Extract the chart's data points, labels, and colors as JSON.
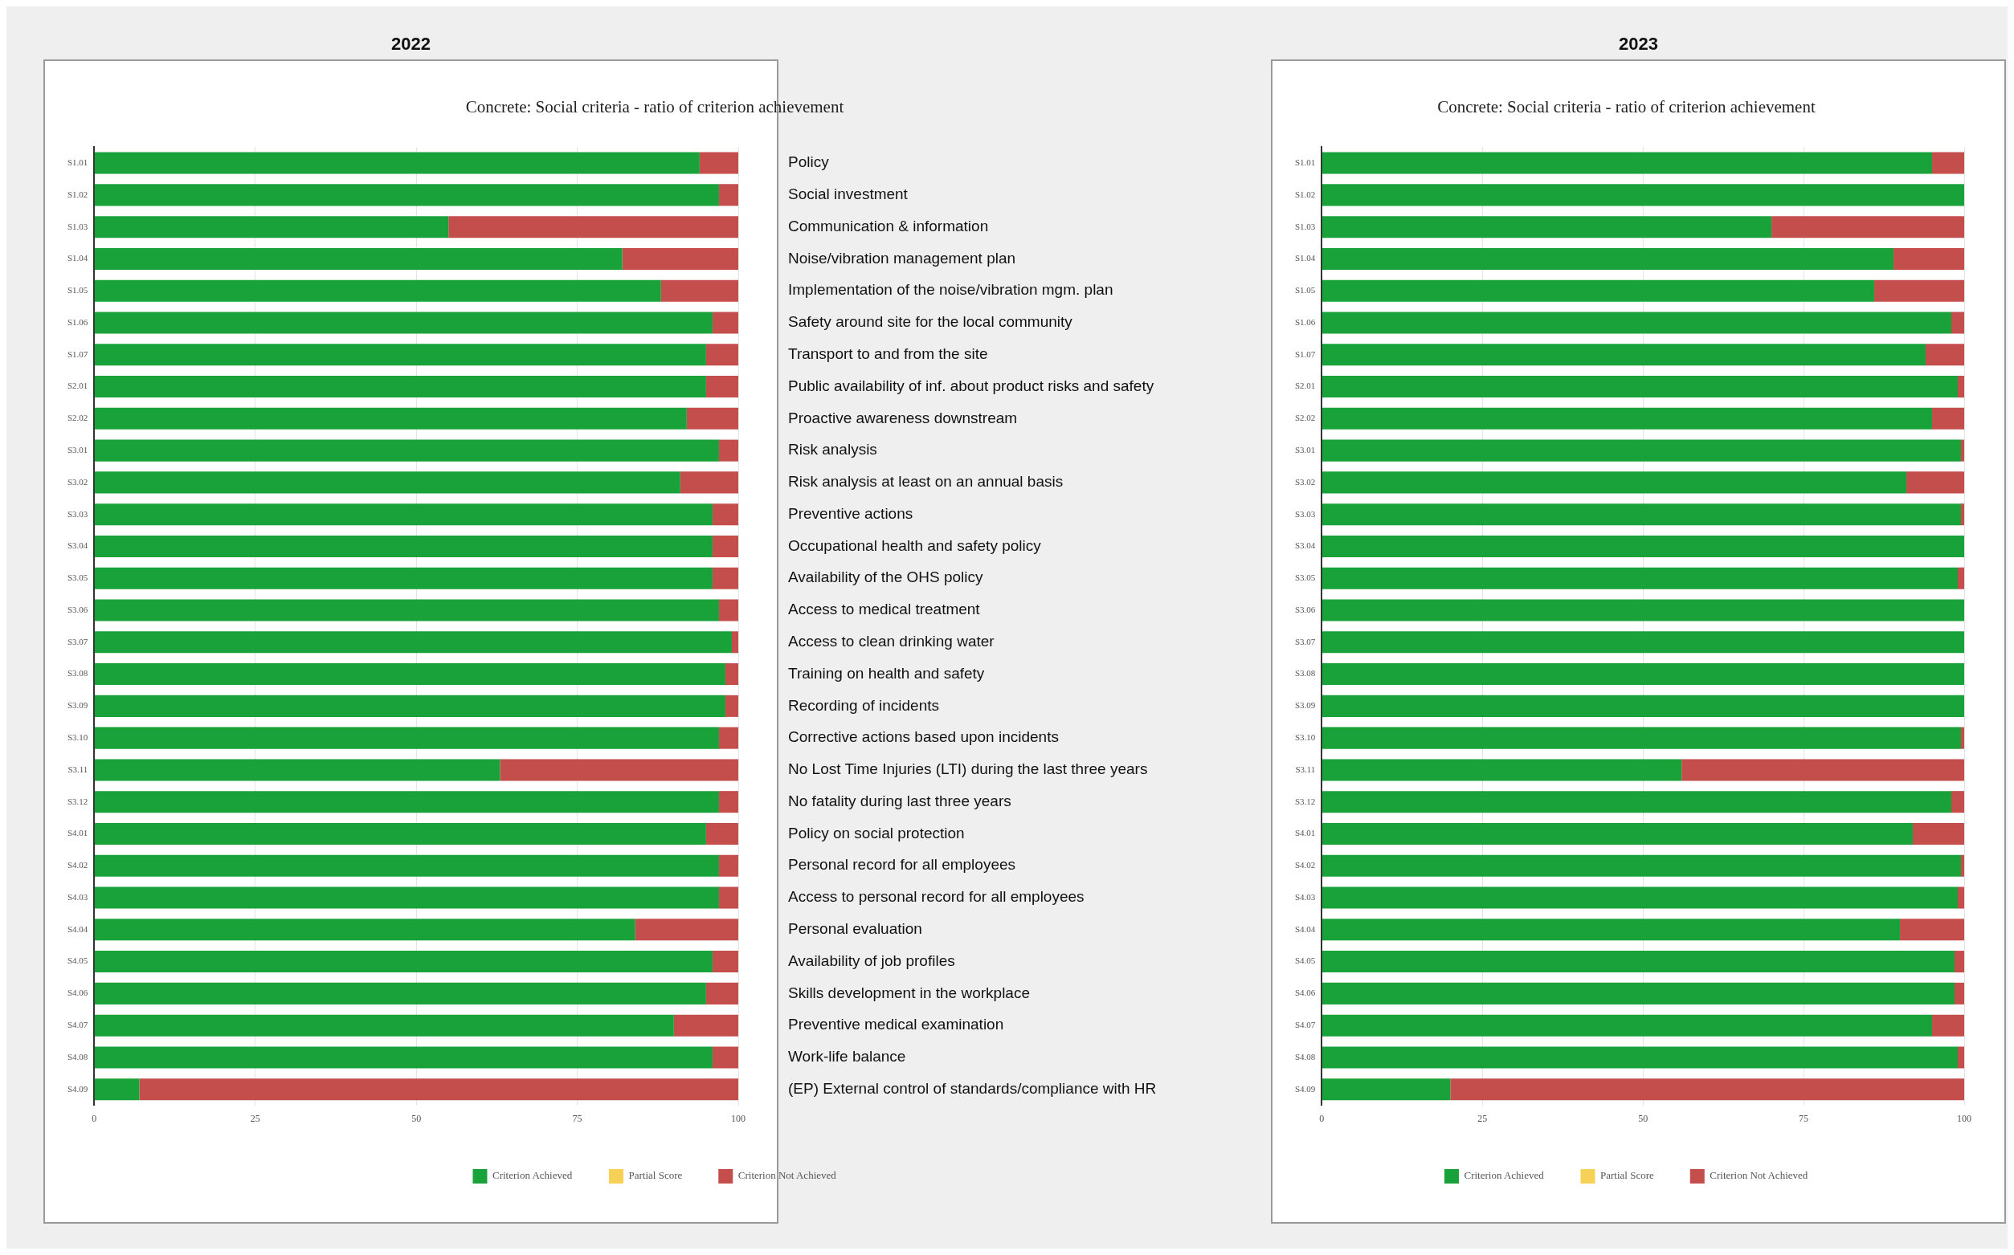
{
  "chart_data": [
    {
      "type": "bar",
      "orientation": "horizontal",
      "stacked": true,
      "title": "2022",
      "subtitle": "Concrete: Social criteria - ratio of criterion achievement",
      "categories": [
        "S1.01",
        "S1.02",
        "S1.03",
        "S1.04",
        "S1.05",
        "S1.06",
        "S1.07",
        "S2.01",
        "S2.02",
        "S3.01",
        "S3.02",
        "S3.03",
        "S3.04",
        "S3.05",
        "S3.06",
        "S3.07",
        "S3.08",
        "S3.09",
        "S3.10",
        "S3.11",
        "S3.12",
        "S4.01",
        "S4.02",
        "S4.03",
        "S4.04",
        "S4.05",
        "S4.06",
        "S4.07",
        "S4.08",
        "S4.09"
      ],
      "y2_categories": [
        "Policy",
        "Social investment",
        "Communication & information",
        "Noise/vibration management plan",
        "Implementation of the noise/vibration mgm. plan",
        "Safety around site for the local community",
        "Transport to and from the site",
        "Public availability of inf. about product risks and safety",
        "Proactive awareness downstream",
        "Risk analysis",
        "Risk analysis at least on an annual basis",
        "Preventive actions",
        "Occupational health and safety policy",
        "Availability of the OHS policy",
        "Access to medical treatment",
        "Access to clean drinking water",
        "Training on health and safety",
        "Recording of incidents",
        "Corrective actions based upon incidents",
        "No Lost Time Injuries (LTI) during the last three years",
        "No fatality during last three years",
        "Policy on social protection",
        "Personal record for all employees",
        "Access to personal record for all employees",
        "Personal evaluation",
        "Availability of job profiles",
        "Skills development in the workplace",
        "Preventive medical examination",
        "Work-life balance",
        "(EP) External control of standards/compliance with HR"
      ],
      "series": [
        {
          "name": "Criterion Achieved",
          "color": "#1aa23a",
          "values": [
            94,
            97,
            55,
            82,
            88,
            96,
            95,
            95,
            92,
            97,
            91,
            96,
            96,
            96,
            97,
            99,
            98,
            98,
            97,
            63,
            97,
            95,
            97,
            97,
            84,
            96,
            95,
            90,
            96,
            7
          ]
        },
        {
          "name": "Partial Score",
          "color": "#f7d155",
          "values": [
            0,
            0,
            0,
            0,
            0,
            0,
            0,
            0,
            0,
            0,
            0,
            0,
            0,
            0,
            0,
            0,
            0,
            0,
            0,
            0,
            0,
            0,
            0,
            0,
            0,
            0,
            0,
            0,
            0,
            0
          ]
        },
        {
          "name": "Criterion Not Achieved",
          "color": "#c44e4b",
          "values": [
            6,
            3,
            45,
            18,
            12,
            4,
            5,
            5,
            8,
            3,
            9,
            4,
            4,
            4,
            3,
            1,
            2,
            2,
            3,
            37,
            3,
            5,
            3,
            3,
            16,
            4,
            5,
            10,
            4,
            93
          ]
        }
      ],
      "xlim": [
        0,
        100
      ],
      "xticks": [
        0,
        25,
        50,
        75,
        100
      ],
      "grid": "x",
      "legend": "bottom"
    },
    {
      "type": "bar",
      "orientation": "horizontal",
      "stacked": true,
      "title": "2023",
      "subtitle": "Concrete: Social criteria - ratio of criterion achievement",
      "categories": [
        "S1.01",
        "S1.02",
        "S1.03",
        "S1.04",
        "S1.05",
        "S1.06",
        "S1.07",
        "S2.01",
        "S2.02",
        "S3.01",
        "S3.02",
        "S3.03",
        "S3.04",
        "S3.05",
        "S3.06",
        "S3.07",
        "S3.08",
        "S3.09",
        "S3.10",
        "S3.11",
        "S3.12",
        "S4.01",
        "S4.02",
        "S4.03",
        "S4.04",
        "S4.05",
        "S4.06",
        "S4.07",
        "S4.08",
        "S4.09"
      ],
      "series": [
        {
          "name": "Criterion Achieved",
          "color": "#1aa23a",
          "values": [
            95,
            100,
            70,
            89,
            86,
            98,
            94,
            99,
            95,
            99.5,
            91,
            99.5,
            100,
            99,
            100,
            100,
            100,
            100,
            99.5,
            56,
            98,
            92,
            99.5,
            99,
            90,
            98.5,
            98.5,
            95,
            99,
            20
          ]
        },
        {
          "name": "Partial Score",
          "color": "#f7d155",
          "values": [
            0,
            0,
            0,
            0,
            0,
            0,
            0,
            0,
            0,
            0,
            0,
            0,
            0,
            0,
            0,
            0,
            0,
            0,
            0,
            0,
            0,
            0,
            0,
            0,
            0,
            0,
            0,
            0,
            0,
            0
          ]
        },
        {
          "name": "Criterion Not Achieved",
          "color": "#c44e4b",
          "values": [
            5,
            0,
            30,
            11,
            14,
            2,
            6,
            1,
            5,
            0.5,
            9,
            0.5,
            0,
            1,
            0,
            0,
            0,
            0,
            0.5,
            44,
            2,
            8,
            0.5,
            1,
            10,
            1.5,
            1.5,
            5,
            1,
            80
          ]
        }
      ],
      "xlim": [
        0,
        100
      ],
      "xticks": [
        0,
        25,
        50,
        75,
        100
      ],
      "grid": "x",
      "legend": "bottom"
    }
  ]
}
